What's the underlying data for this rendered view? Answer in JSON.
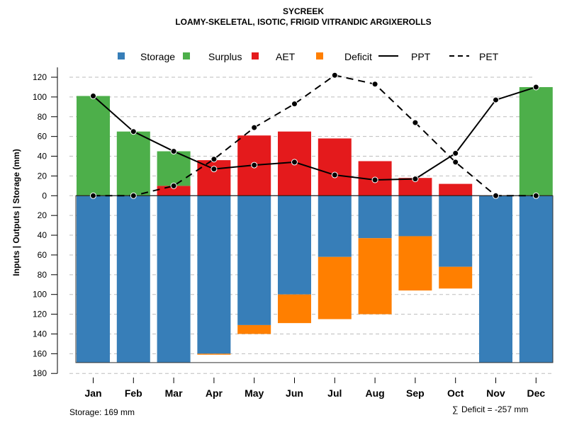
{
  "chart_data": {
    "type": "bar",
    "title": "SYCREEK",
    "subtitle": "LOAMY-SKELETAL, ISOTIC, FRIGID VITRANDIC ARGIXEROLLS",
    "xlabel": "",
    "ylabel": "Inputs | Outputs | Storage    (mm)",
    "categories": [
      "Jan",
      "Feb",
      "Mar",
      "Apr",
      "May",
      "Jun",
      "Jul",
      "Aug",
      "Sep",
      "Oct",
      "Nov",
      "Dec"
    ],
    "ylim": [
      -180,
      130
    ],
    "yticks": [
      120,
      100,
      80,
      60,
      40,
      20,
      0,
      -20,
      -40,
      -60,
      -80,
      -100,
      -120,
      -140,
      -160,
      -180
    ],
    "ytick_labels": [
      "120",
      "100",
      "80",
      "60",
      "40",
      "20",
      "0",
      "20",
      "40",
      "60",
      "80",
      "100",
      "120",
      "140",
      "160",
      "180"
    ],
    "grid": true,
    "legend_position": "top",
    "legend": [
      {
        "label": "Storage",
        "type": "box",
        "color": "#377EB8"
      },
      {
        "label": "Surplus",
        "type": "box",
        "color": "#4DAF4A"
      },
      {
        "label": "AET",
        "type": "box",
        "color": "#E41A1C"
      },
      {
        "label": "Deficit",
        "type": "box",
        "color": "#FF7F00"
      },
      {
        "label": "PPT",
        "type": "solid-line",
        "color": "#000000"
      },
      {
        "label": "PET",
        "type": "dashed-line",
        "color": "#000000"
      }
    ],
    "series": [
      {
        "name": "Storage",
        "color": "#377EB8",
        "direction": "down",
        "values": [
          169,
          169,
          169,
          160,
          131,
          100,
          62,
          43,
          41,
          72,
          169,
          169
        ]
      },
      {
        "name": "Deficit",
        "color": "#FF7F00",
        "direction": "down",
        "values": [
          0,
          0,
          0,
          1,
          9,
          29,
          63,
          77,
          55,
          22,
          0,
          0
        ]
      },
      {
        "name": "AET",
        "color": "#E41A1C",
        "direction": "up",
        "values": [
          0,
          0,
          10,
          36,
          61,
          65,
          58,
          35,
          18,
          12,
          0,
          0
        ]
      },
      {
        "name": "Surplus",
        "color": "#4DAF4A",
        "direction": "up",
        "values": [
          101,
          65,
          35,
          0,
          0,
          0,
          0,
          0,
          0,
          0,
          0,
          110
        ]
      },
      {
        "name": "PPT",
        "color": "#000000",
        "style": "solid",
        "values": [
          101,
          65,
          45,
          27,
          31,
          34,
          21,
          16,
          17,
          43,
          97,
          110
        ]
      },
      {
        "name": "PET",
        "color": "#000000",
        "style": "dashed",
        "values": [
          0,
          0,
          10,
          37,
          69,
          93,
          122,
          113,
          74,
          34,
          0,
          0
        ]
      }
    ],
    "storage_capacity": 169,
    "annotations": {
      "storage": "Storage: 169 mm",
      "deficit_sum_symbol": "∑",
      "deficit_sum": "Deficit = -257 mm"
    }
  }
}
